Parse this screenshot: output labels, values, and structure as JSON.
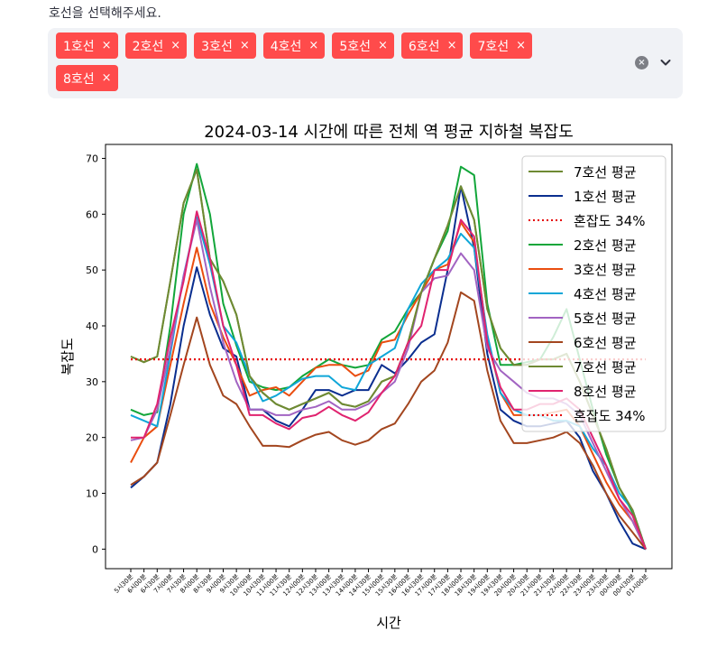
{
  "select": {
    "prompt": "호선을 선택해주세요.",
    "tags": [
      "1호선",
      "2호선",
      "3호선",
      "4호선",
      "5호선",
      "6호선",
      "7호선",
      "8호선"
    ],
    "remove_glyph": "×",
    "clear_glyph": "×"
  },
  "colors": {
    "accent": "#ff4b4b",
    "line1": "#0a2e8f",
    "line2": "#12a63a",
    "line3": "#ea4d0f",
    "line4": "#0fa6d8",
    "line5": "#a264c2",
    "line6": "#a3461f",
    "line7": "#6e8a33",
    "line8": "#e0236f",
    "threshold": "#e60000"
  },
  "chart_data": {
    "type": "line",
    "title": "2024-03-14 시간에 따른 전체 역 평균 지하철 복잡도",
    "xlabel": "시간",
    "ylabel": "복잡도",
    "ylim": [
      -3.5,
      72.5
    ],
    "yticks": [
      0,
      10,
      20,
      30,
      40,
      50,
      60,
      70
    ],
    "legend_position": "upper right",
    "grid": false,
    "categories": [
      "5시30분",
      "6시00분",
      "6시30분",
      "7시00분",
      "7시30분",
      "8시00분",
      "8시30분",
      "9시00분",
      "9시30분",
      "10시00분",
      "10시30분",
      "11시00분",
      "11시30분",
      "12시00분",
      "12시30분",
      "13시00분",
      "13시30분",
      "14시00분",
      "14시30분",
      "15시00분",
      "15시30분",
      "16시00분",
      "16시30분",
      "17시00분",
      "17시30분",
      "18시00분",
      "18시30분",
      "19시00분",
      "19시30분",
      "20시00분",
      "20시30분",
      "21시00분",
      "21시30분",
      "22시00분",
      "22시30분",
      "23시00분",
      "23시30분",
      "00시00분",
      "00시30분",
      "01시00분"
    ],
    "series": [
      {
        "name": "7호선 평균",
        "color": "#6e8a33",
        "style": "solid",
        "values": [
          34.5,
          33.5,
          34.5,
          48,
          62,
          68,
          52,
          48,
          42,
          31,
          28,
          26,
          25,
          26,
          27,
          28,
          26,
          25.5,
          26.5,
          30,
          31,
          37,
          46,
          52,
          58,
          65,
          59,
          43,
          36,
          33,
          33,
          34,
          34,
          35,
          30,
          24,
          18,
          11,
          7,
          0
        ]
      },
      {
        "name": "1호선 평균",
        "color": "#0a2e8f",
        "style": "solid",
        "values": [
          11,
          13,
          15.5,
          26,
          40,
          50.5,
          42,
          36,
          34.5,
          25,
          25,
          23,
          22,
          25,
          28.5,
          28.5,
          27.5,
          28.5,
          28.5,
          33,
          31.5,
          34,
          37,
          38.5,
          50,
          65,
          54,
          35,
          25,
          23,
          22,
          22,
          22.5,
          23,
          20,
          14,
          10,
          5,
          1,
          0
        ]
      },
      {
        "name": "혼잡도 34%",
        "color": "#e60000",
        "style": "dotted",
        "values": [
          34,
          34,
          34,
          34,
          34,
          34,
          34,
          34,
          34,
          34,
          34,
          34,
          34,
          34,
          34,
          34,
          34,
          34,
          34,
          34,
          34,
          34,
          34,
          34,
          34,
          34,
          34,
          34,
          34,
          34,
          34,
          34,
          34,
          34,
          34,
          34,
          34,
          34,
          34,
          34
        ]
      },
      {
        "name": "2호선 평균",
        "color": "#12a63a",
        "style": "solid",
        "values": [
          25,
          24,
          24.5,
          40,
          60,
          69,
          60,
          44,
          36.5,
          30,
          29,
          28.5,
          29,
          31,
          32.5,
          34,
          33,
          32.5,
          33,
          37.5,
          39,
          43,
          46,
          52,
          57,
          68.5,
          67,
          44,
          33,
          33,
          33.5,
          34,
          38,
          43,
          34,
          25,
          17,
          11,
          6.5,
          0
        ]
      },
      {
        "name": "3호선 평균",
        "color": "#ea4d0f",
        "style": "solid",
        "values": [
          15.5,
          20,
          22,
          33,
          44,
          54,
          44,
          38,
          33,
          27.5,
          28.5,
          29,
          27.5,
          30,
          32.5,
          33,
          33,
          31,
          32,
          37,
          37.5,
          42,
          46,
          50,
          51,
          58.5,
          55,
          38,
          28,
          24,
          24,
          24,
          24.5,
          25,
          22,
          17,
          12,
          8,
          5,
          0
        ]
      },
      {
        "name": "4호선 평균",
        "color": "#0fa6d8",
        "style": "solid",
        "values": [
          24,
          23,
          22,
          35,
          49,
          59.5,
          51,
          40,
          37,
          31,
          26.5,
          27.5,
          29,
          30.5,
          31,
          31,
          29,
          28.5,
          33,
          34.5,
          36,
          43,
          47.5,
          50,
          52,
          56.5,
          54,
          38.5,
          28,
          25,
          24,
          24,
          23,
          23,
          22,
          18,
          15,
          10,
          7,
          0
        ]
      },
      {
        "name": "5호선 평균",
        "color": "#a264c2",
        "style": "solid",
        "values": [
          19.5,
          20,
          25,
          36,
          49,
          59,
          47,
          37,
          30,
          25,
          25,
          24,
          24,
          25,
          25.5,
          26.5,
          25,
          25,
          26,
          28,
          30,
          36,
          46,
          48.5,
          49,
          53,
          50,
          36,
          32,
          30,
          28,
          27,
          27,
          26,
          24,
          19,
          14,
          9,
          5,
          0
        ]
      },
      {
        "name": "6호선 평균",
        "color": "#a3461f",
        "style": "solid",
        "values": [
          11.5,
          13,
          15.5,
          24,
          33,
          41.5,
          33,
          27.5,
          26,
          22,
          18.5,
          18.5,
          18.3,
          19.5,
          20.5,
          21,
          19.5,
          18.7,
          19.5,
          21.5,
          22.5,
          26,
          30,
          32,
          37,
          46,
          44.5,
          32,
          23,
          19,
          19,
          19.5,
          20,
          21,
          19,
          15,
          10,
          6,
          3,
          0
        ]
      },
      {
        "name": "7호선 평균",
        "color": "#6e8a33",
        "style": "solid",
        "values": [
          34.5,
          33.5,
          34.5,
          48,
          62,
          68,
          52,
          48,
          42,
          31,
          28,
          26,
          25,
          26,
          27,
          28,
          26,
          25.5,
          26.5,
          30,
          31,
          37,
          46,
          52,
          58,
          65,
          59,
          43,
          36,
          33,
          33,
          34,
          34,
          35,
          30,
          24,
          18,
          11,
          7,
          0
        ]
      },
      {
        "name": "8호선 평균",
        "color": "#e0236f",
        "style": "solid",
        "values": [
          20,
          20,
          26,
          38,
          48,
          60.5,
          52,
          40,
          33,
          24,
          24,
          22.5,
          21.5,
          23.5,
          24,
          25.5,
          24,
          23,
          24.5,
          28,
          31,
          37,
          40,
          50,
          50,
          59,
          56,
          37,
          29,
          25,
          25,
          26,
          26,
          27,
          25,
          20,
          15,
          9,
          6,
          0
        ]
      },
      {
        "name": "혼잡도 34%",
        "color": "#e60000",
        "style": "dotted",
        "values": [
          34,
          34,
          34,
          34,
          34,
          34,
          34,
          34,
          34,
          34,
          34,
          34,
          34,
          34,
          34,
          34,
          34,
          34,
          34,
          34,
          34,
          34,
          34,
          34,
          34,
          34,
          34,
          34,
          34,
          34,
          34,
          34,
          34,
          34,
          34,
          34,
          34,
          34,
          34,
          34
        ]
      }
    ]
  }
}
